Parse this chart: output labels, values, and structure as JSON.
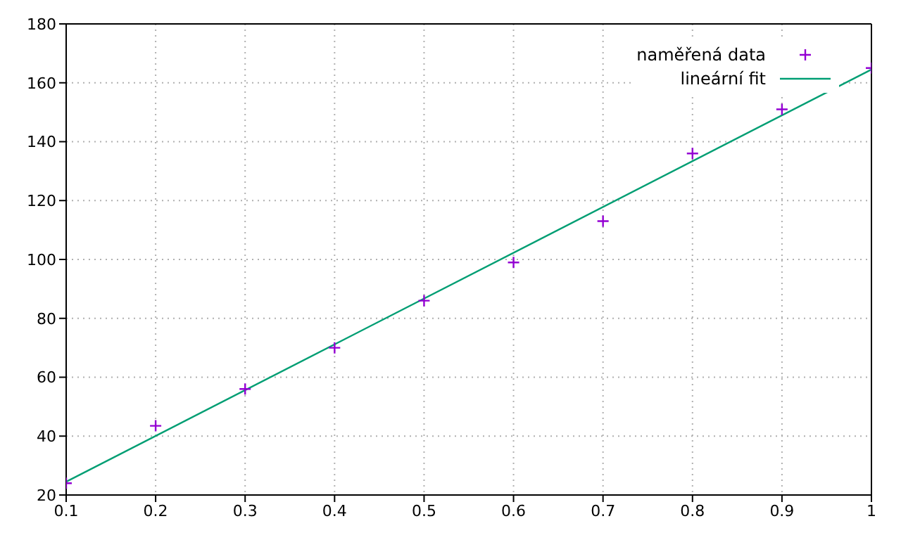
{
  "chart_data": {
    "type": "scatter",
    "series": [
      {
        "name": "naměřená data",
        "color": "#9400d3",
        "marker": "cross",
        "x": [
          0.1,
          0.2,
          0.3,
          0.4,
          0.5,
          0.6,
          0.7,
          0.8,
          0.9,
          1.0
        ],
        "values": [
          24,
          43.5,
          56,
          70,
          86,
          99,
          113,
          136,
          151,
          165
        ]
      },
      {
        "name": "lineární fit",
        "type": "line",
        "color": "#009e73",
        "marker": "none",
        "x": [
          0.1,
          1.0
        ],
        "values": [
          24.5,
          164.5
        ]
      }
    ],
    "xlim": [
      0.1,
      1
    ],
    "xticks": [
      0.1,
      0.2,
      0.3,
      0.4,
      0.5,
      0.6,
      0.7,
      0.8,
      0.9,
      1
    ],
    "ylim": [
      20,
      180
    ],
    "yticks": [
      20,
      40,
      60,
      80,
      100,
      120,
      140,
      160,
      180
    ],
    "grid": true,
    "legend": "top right"
  }
}
